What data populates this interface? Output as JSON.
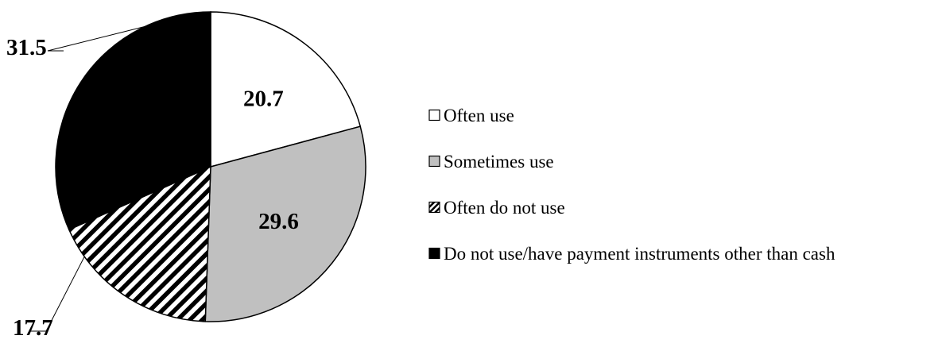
{
  "chart_data": {
    "type": "pie",
    "title": "",
    "slices": [
      {
        "label": "Often use",
        "value": 20.7,
        "color": "#ffffff",
        "pattern": "none"
      },
      {
        "label": "Sometimes use",
        "value": 29.6,
        "color": "#c0c0c0",
        "pattern": "none"
      },
      {
        "label": "Often do not use",
        "value": 17.7,
        "color": "#ffffff",
        "pattern": "diagonal-stripes"
      },
      {
        "label": "Do not use/have payment instruments other than cash",
        "value": 31.5,
        "color": "#000000",
        "pattern": "none"
      }
    ],
    "legend_position": "right"
  }
}
